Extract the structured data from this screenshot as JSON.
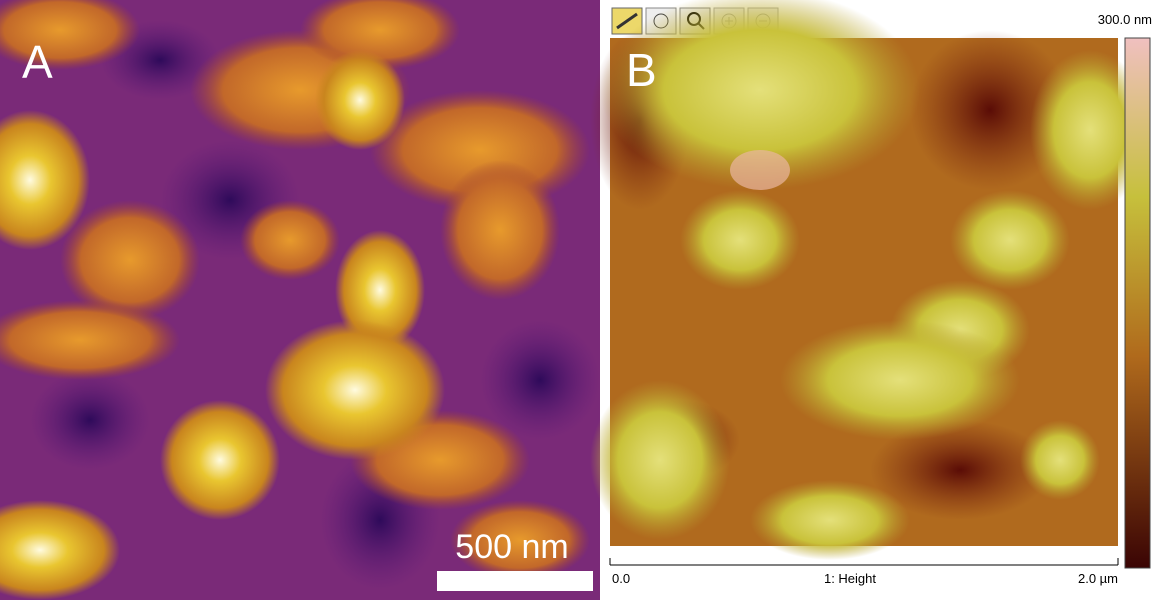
{
  "panel_a": {
    "label": "A",
    "scale_bar": "500 nm"
  },
  "panel_b": {
    "label": "B",
    "colorbar_max": "300.0 nm",
    "axis_start": "0.0",
    "axis_label": "1: Height",
    "axis_end": "2.0 µm"
  }
}
